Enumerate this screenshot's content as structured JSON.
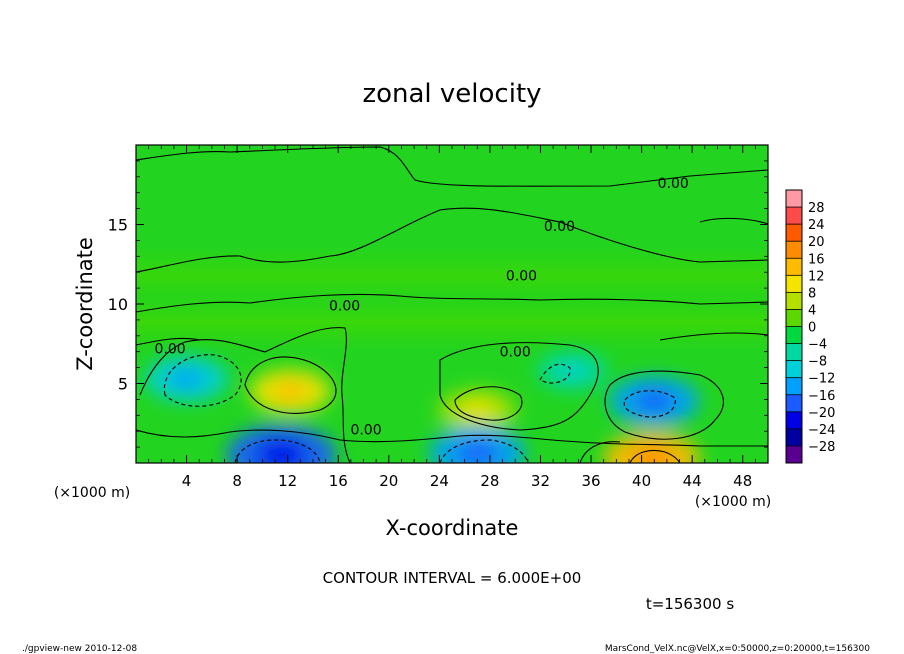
{
  "chart_data": {
    "type": "heatmap",
    "title": "zonal velocity",
    "xlabel": "X-coordinate",
    "ylabel": "Z-coordinate",
    "x_unit_left": "(×1000 m)",
    "x_unit_right": "(×1000 m)",
    "xlim": [
      0,
      50
    ],
    "ylim": [
      0,
      20
    ],
    "x_ticks": [
      "4",
      "8",
      "12",
      "16",
      "20",
      "24",
      "28",
      "32",
      "36",
      "40",
      "44",
      "48"
    ],
    "x_tick_values": [
      4,
      8,
      12,
      16,
      20,
      24,
      28,
      32,
      36,
      40,
      44,
      48
    ],
    "y_ticks": [
      "5",
      "10",
      "15"
    ],
    "y_tick_values": [
      5,
      10,
      15
    ],
    "contour_interval_text": "CONTOUR INTERVAL = 6.000E+00",
    "time_label": "t=156300 s",
    "contour_labels": [
      {
        "text": "0.00",
        "x": 42.5,
        "y": 17.6
      },
      {
        "text": "0.00",
        "x": 33.5,
        "y": 14.9
      },
      {
        "text": "0.00",
        "x": 30.5,
        "y": 11.8
      },
      {
        "text": "0.00",
        "x": 16.5,
        "y": 9.9
      },
      {
        "text": "0.00",
        "x": 2.7,
        "y": 7.2
      },
      {
        "text": "0.00",
        "x": 30.0,
        "y": 7.0
      },
      {
        "text": "0.00",
        "x": 18.2,
        "y": 2.1
      }
    ],
    "features": [
      {
        "kind": "negative",
        "x": 4.0,
        "y": 5.3,
        "value": -10
      },
      {
        "kind": "positive",
        "x": 12.2,
        "y": 4.5,
        "value": 9
      },
      {
        "kind": "negative",
        "x": 11.5,
        "y": 0.5,
        "value": -18
      },
      {
        "kind": "positive",
        "x": 27.0,
        "y": 3.3,
        "value": 8
      },
      {
        "kind": "negative",
        "x": 27.0,
        "y": 0.6,
        "value": -14
      },
      {
        "kind": "negative",
        "x": 41.0,
        "y": 3.9,
        "value": -12
      },
      {
        "kind": "positive",
        "x": 40.8,
        "y": 0.3,
        "value": 14
      },
      {
        "kind": "negative",
        "x": 34.5,
        "y": 5.8,
        "value": -6
      }
    ],
    "colorbar": {
      "labels": [
        "28",
        "24",
        "20",
        "16",
        "12",
        "8",
        "4",
        "0",
        "−4",
        "−8",
        "−12",
        "−16",
        "−20",
        "−24",
        "−28"
      ],
      "colors": [
        "#ff9aa5",
        "#ff4a4a",
        "#ff5a00",
        "#ff8c00",
        "#ffbb00",
        "#f4e400",
        "#b4e000",
        "#5ad800",
        "#00d840",
        "#00d8a0",
        "#00d0d8",
        "#00a0ff",
        "#1a5cff",
        "#0000e6",
        "#0000a0",
        "#5a0090"
      ]
    }
  },
  "footer": {
    "left": "./gpview-new   2010-12-08",
    "right": "MarsCond_VelX.nc@VelX,x=0:50000,z=0:20000,t=156300"
  }
}
